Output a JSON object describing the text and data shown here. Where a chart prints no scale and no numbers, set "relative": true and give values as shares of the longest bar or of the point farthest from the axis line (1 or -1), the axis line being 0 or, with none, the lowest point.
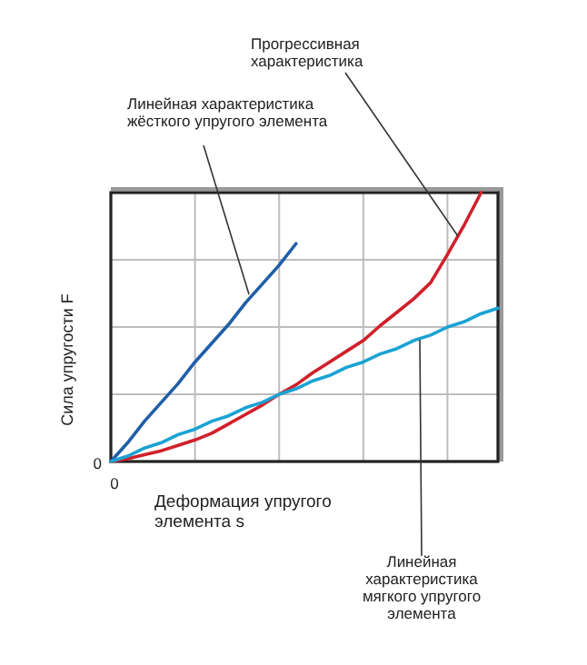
{
  "chart_data": {
    "type": "line",
    "relative": true,
    "xlabel": "Деформация упругого элемента s",
    "ylabel": "Сила упругости F",
    "categories": [
      null,
      null,
      null,
      null,
      null,
      null,
      null,
      null,
      null,
      null,
      null,
      null,
      null,
      null,
      null,
      null,
      null,
      null,
      null,
      null,
      null,
      null,
      null,
      null
    ],
    "grid": true,
    "marker": "none",
    "line_style": "solid",
    "series": [
      {
        "color": "#1f5fa8",
        "values": [
          0,
          0.07,
          0.15,
          0.22,
          0.29,
          0.37,
          0.44,
          0.51,
          0.59,
          0.66,
          0.73,
          0.81,
          null,
          null,
          null,
          null,
          null,
          null,
          null,
          null,
          null,
          null,
          null,
          null
        ]
      },
      {
        "color": "#d0202a",
        "values": [
          0,
          0.01,
          0.025,
          0.04,
          0.06,
          0.08,
          0.105,
          0.14,
          0.175,
          0.21,
          0.25,
          0.285,
          0.33,
          0.37,
          0.41,
          0.45,
          0.505,
          0.555,
          0.605,
          0.665,
          0.77,
          0.88,
          1.0,
          null
        ]
      },
      {
        "color": "#1aa3d4",
        "values": [
          0,
          0.02,
          0.05,
          0.07,
          0.1,
          0.12,
          0.15,
          0.17,
          0.2,
          0.22,
          0.25,
          0.27,
          0.3,
          0.32,
          0.35,
          0.37,
          0.4,
          0.42,
          0.45,
          0.47,
          0.5,
          0.52,
          0.55,
          0.57
        ]
      }
    ],
    "annotations": [
      "Линейная характеристика жёсткого упругого элемента",
      "Прогрессивная характеристика",
      "Линейная характеристика мягкого упругого элемента",
      "0",
      "0"
    ]
  }
}
